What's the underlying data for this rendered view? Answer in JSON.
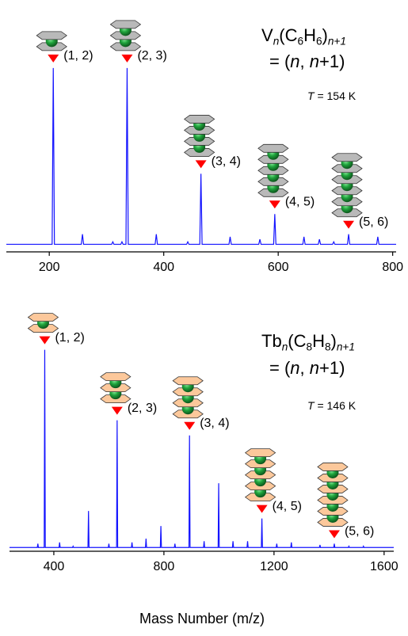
{
  "chart_data": [
    {
      "type": "line",
      "color": "#1414ff",
      "icon_color": "#b9b9b9",
      "marker_color": "#ff0000",
      "label_color": "#800080",
      "title": [
        {
          "text": "V"
        },
        {
          "text": "n",
          "sub": true,
          "italic": true
        },
        {
          "text": "(C"
        },
        {
          "text": "6",
          "sub": true
        },
        {
          "text": "H"
        },
        {
          "text": "6",
          "sub": true
        },
        {
          "text": ")"
        },
        {
          "text": "n+1",
          "sub": true,
          "italic": true
        }
      ],
      "subtitle": [
        {
          "text": "= ("
        },
        {
          "text": "n",
          "italic": true
        },
        {
          "text": ", "
        },
        {
          "text": "n",
          "italic": true
        },
        {
          "text": "+1)"
        }
      ],
      "temperature": [
        {
          "text": "T",
          "italic": true
        },
        {
          "text": " = 154 K"
        }
      ],
      "x": [
        125,
        205,
        207,
        209,
        256,
        258,
        260,
        309,
        311,
        313,
        325,
        327,
        329,
        334,
        336,
        338,
        385,
        387,
        389,
        440,
        442,
        444,
        463,
        465,
        467,
        514,
        516,
        518,
        566,
        568,
        570,
        592,
        594,
        596,
        643,
        645,
        647,
        670,
        672,
        674,
        695,
        697,
        699,
        721,
        723,
        725,
        772,
        774,
        776,
        806
      ],
      "values": [
        3,
        3,
        73,
        3,
        3,
        7,
        3,
        3,
        4,
        3,
        3,
        4,
        3,
        3,
        73,
        3,
        3,
        7,
        3,
        3,
        4,
        3,
        3,
        31,
        3,
        3,
        6,
        3,
        3,
        5,
        3,
        3,
        15,
        3,
        3,
        6,
        3,
        3,
        5,
        3,
        3,
        4,
        3,
        3,
        7,
        3,
        3,
        6,
        3,
        3
      ],
      "annotations": [
        {
          "x": 207,
          "label": "(1, 2)"
        },
        {
          "x": 336,
          "label": "(2, 3)"
        },
        {
          "x": 465,
          "label": "(3, 4)"
        },
        {
          "x": 594,
          "label": "(4, 5)"
        },
        {
          "x": 723,
          "label": "(5, 6)"
        }
      ],
      "xlim": [
        125,
        806
      ],
      "ylim": [
        0,
        100
      ],
      "xticks": [
        200,
        400,
        600,
        800
      ]
    },
    {
      "type": "line",
      "color": "#1414ff",
      "icon_color": "#fcc89b",
      "marker_color": "#ff0000",
      "label_color": "#800080",
      "title": [
        {
          "text": "Tb"
        },
        {
          "text": "n",
          "sub": true,
          "italic": true
        },
        {
          "text": "(C"
        },
        {
          "text": "8",
          "sub": true
        },
        {
          "text": "H"
        },
        {
          "text": "8",
          "sub": true
        },
        {
          "text": ")"
        },
        {
          "text": "n+1",
          "sub": true,
          "italic": true
        }
      ],
      "subtitle": [
        {
          "text": "= ("
        },
        {
          "text": "n",
          "italic": true
        },
        {
          "text": ", "
        },
        {
          "text": "n",
          "italic": true
        },
        {
          "text": "+1)"
        }
      ],
      "temperature": [
        {
          "text": "T",
          "italic": true
        },
        {
          "text": " = 146 K"
        }
      ],
      "x": [
        239,
        340,
        342,
        344,
        365,
        367,
        369,
        419,
        421,
        423,
        468,
        470,
        472,
        524,
        526,
        528,
        598,
        600,
        602,
        628,
        630,
        632,
        682,
        684,
        686,
        733,
        735,
        737,
        787,
        789,
        791,
        838,
        840,
        842,
        891,
        893,
        895,
        944,
        946,
        948,
        997,
        999,
        1001,
        1049,
        1051,
        1053,
        1102,
        1104,
        1106,
        1154,
        1156,
        1158,
        1208,
        1210,
        1212,
        1261,
        1263,
        1265,
        1365,
        1367,
        1369,
        1417,
        1419,
        1421,
        1470,
        1472,
        1474,
        1523,
        1525,
        1527,
        1635
      ],
      "values": [
        1.5,
        1.5,
        3,
        1.5,
        1.5,
        80,
        1.5,
        1.5,
        3.5,
        1.5,
        1.5,
        2,
        1.5,
        1.5,
        16,
        1.5,
        1.5,
        3,
        1.5,
        1.5,
        52,
        1.5,
        1.5,
        3.5,
        1.5,
        1.5,
        5,
        1.5,
        1.5,
        10,
        1.5,
        1.5,
        3,
        1.5,
        1.5,
        46,
        1.5,
        1.5,
        4,
        1.5,
        1.5,
        27,
        1.5,
        1.5,
        4,
        1.5,
        1.5,
        4,
        1.5,
        1.5,
        13,
        1.5,
        1.5,
        3,
        1.5,
        1.5,
        3.5,
        1.5,
        1.5,
        2.5,
        1.5,
        1.5,
        3,
        1.5,
        1.5,
        2,
        1.5,
        1.5,
        2,
        1.5,
        1.5
      ],
      "annotations": [
        {
          "x": 367,
          "label": "(1, 2)"
        },
        {
          "x": 630,
          "label": "(2, 3)"
        },
        {
          "x": 893,
          "label": "(3, 4)"
        },
        {
          "x": 1156,
          "label": "(4, 5)"
        },
        {
          "x": 1419,
          "label": "(5, 6)"
        }
      ],
      "xlim": [
        239,
        1635
      ],
      "ylim": [
        0,
        100
      ],
      "xticks": [
        400,
        800,
        1200,
        1600
      ],
      "xlabel": "Mass Number (m/z)"
    }
  ]
}
